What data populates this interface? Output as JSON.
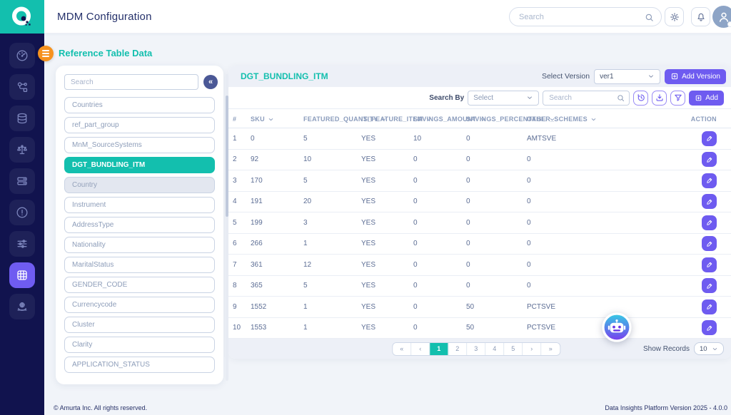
{
  "app": {
    "title": "MDM Configuration",
    "header_search_placeholder": "Search"
  },
  "sidebar": {
    "items": [
      {
        "icon": "gauge-icon",
        "active": false
      },
      {
        "icon": "flow-icon",
        "active": false
      },
      {
        "icon": "database-icon",
        "active": false
      },
      {
        "icon": "scales-icon",
        "active": false
      },
      {
        "icon": "server-icon",
        "active": false
      },
      {
        "icon": "alert-icon",
        "active": false
      },
      {
        "icon": "sliders-icon",
        "active": false
      },
      {
        "icon": "grid-icon",
        "active": true
      },
      {
        "icon": "hand-globe-icon",
        "active": false
      }
    ]
  },
  "reference_panel": {
    "title": "Reference Table Data",
    "search_placeholder": "Search",
    "collapse_glyph": "«",
    "items": [
      {
        "label": "Countries",
        "state": "default"
      },
      {
        "label": "ref_part_group",
        "state": "default"
      },
      {
        "label": "MnM_SourceSystems",
        "state": "default"
      },
      {
        "label": "DGT_BUNDLING_ITM",
        "state": "selected"
      },
      {
        "label": "Country",
        "state": "muted"
      },
      {
        "label": "Instrument",
        "state": "default"
      },
      {
        "label": "AddressType",
        "state": "default"
      },
      {
        "label": "Nationality",
        "state": "default"
      },
      {
        "label": "MaritalStatus",
        "state": "default"
      },
      {
        "label": "GENDER_CODE",
        "state": "default"
      },
      {
        "label": "Currencycode",
        "state": "default"
      },
      {
        "label": "Cluster",
        "state": "default"
      },
      {
        "label": "Clarity",
        "state": "default"
      },
      {
        "label": "APPLICATION_STATUS",
        "state": "default"
      }
    ]
  },
  "main": {
    "table_title": "DGT_BUNDLING_ITM",
    "version_bar": {
      "label": "Select Version",
      "selected": "ver1",
      "add_version_label": "Add Version"
    },
    "toolbar": {
      "search_by_label": "Search By",
      "filter_select_placeholder": "Select",
      "search_placeholder": "Search",
      "add_label": "Add"
    },
    "table": {
      "columns": [
        "#",
        "SKU",
        "FEATURED_QUANTITY",
        "IS_FEATURE_ITEM",
        "SAVINGS_AMOUNT",
        "SAVINGS_PERCENTAGE",
        "OTHER_SCHEMES",
        "ACTION"
      ],
      "sortable": [
        false,
        true,
        true,
        true,
        true,
        true,
        true,
        false
      ],
      "rows": [
        [
          "1",
          "0",
          "5",
          "YES",
          "10",
          "0",
          "AMTSVE"
        ],
        [
          "2",
          "92",
          "10",
          "YES",
          "0",
          "0",
          "0"
        ],
        [
          "3",
          "170",
          "5",
          "YES",
          "0",
          "0",
          "0"
        ],
        [
          "4",
          "191",
          "20",
          "YES",
          "0",
          "0",
          "0"
        ],
        [
          "5",
          "199",
          "3",
          "YES",
          "0",
          "0",
          "0"
        ],
        [
          "6",
          "266",
          "1",
          "YES",
          "0",
          "0",
          "0"
        ],
        [
          "7",
          "361",
          "12",
          "YES",
          "0",
          "0",
          "0"
        ],
        [
          "8",
          "365",
          "5",
          "YES",
          "0",
          "0",
          "0"
        ],
        [
          "9",
          "1552",
          "1",
          "YES",
          "0",
          "50",
          "PCTSVE"
        ],
        [
          "10",
          "1553",
          "1",
          "YES",
          "0",
          "50",
          "PCTSVE"
        ]
      ]
    },
    "pagination": {
      "first": "«",
      "prev": "‹",
      "pages": [
        "1",
        "2",
        "3",
        "4",
        "5"
      ],
      "active_page": "1",
      "next": "›",
      "last": "»"
    },
    "show_records": {
      "label": "Show Records",
      "value": "10"
    }
  },
  "footer": {
    "left": "© Amurta Inc. All rights reserved.",
    "right": "Data Insights Platform Version 2025 - 4.0.0"
  },
  "colors": {
    "teal": "#13bfae",
    "purple": "#6e5bf0",
    "orange": "#f6921e",
    "navy": "#11134e"
  }
}
